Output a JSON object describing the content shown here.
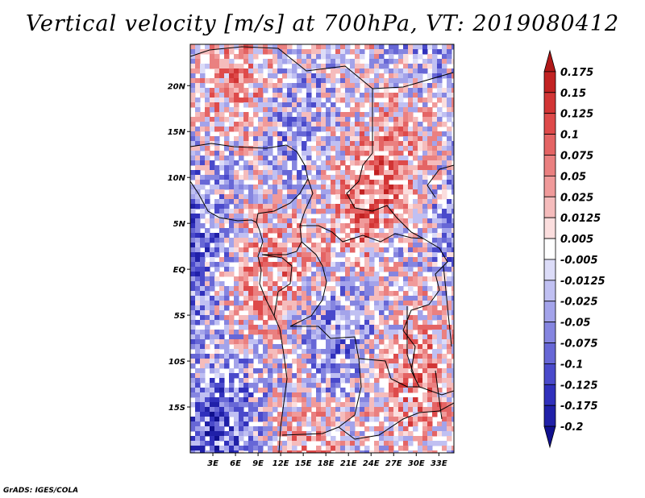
{
  "title": "Vertical velocity [m/s] at 700hPa, VT: 2019080412",
  "credit": "GrADS: IGES/COLA",
  "map": {
    "variable": "Vertical velocity",
    "units": "m/s",
    "level": "700hPa",
    "valid_time": "2019080412",
    "lat_ticks": [
      "20N",
      "15N",
      "10N",
      "5N",
      "EQ",
      "5S",
      "10S",
      "15S"
    ],
    "lon_ticks": [
      "3E",
      "6E",
      "9E",
      "12E",
      "15E",
      "18E",
      "21E",
      "24E",
      "27E",
      "30E",
      "33E"
    ],
    "lat_range": [
      -20,
      24.5
    ],
    "lon_range": [
      0,
      35
    ]
  },
  "colorbar": {
    "labels": [
      "0.175",
      "0.15",
      "0.125",
      "0.1",
      "0.075",
      "0.05",
      "0.025",
      "0.0125",
      "0.005",
      "-0.005",
      "-0.0125",
      "-0.025",
      "-0.05",
      "-0.075",
      "-0.1",
      "-0.125",
      "-0.175",
      "-0.2"
    ],
    "colors": [
      "#b01818",
      "#c22222",
      "#d23535",
      "#de4a4a",
      "#e46464",
      "#ea8080",
      "#f09a9a",
      "#f5bcbc",
      "#fbdede",
      "#ffffff",
      "#dcdcf8",
      "#c0c0f2",
      "#a3a3ea",
      "#8585e0",
      "#6767d6",
      "#4a4acb",
      "#3030bc",
      "#2020a8",
      "#10108f"
    ]
  },
  "colors": {
    "positive_strong": "#c22222",
    "negative_strong": "#2a2ab8",
    "background": "#ffffff",
    "borders": "#000000"
  }
}
